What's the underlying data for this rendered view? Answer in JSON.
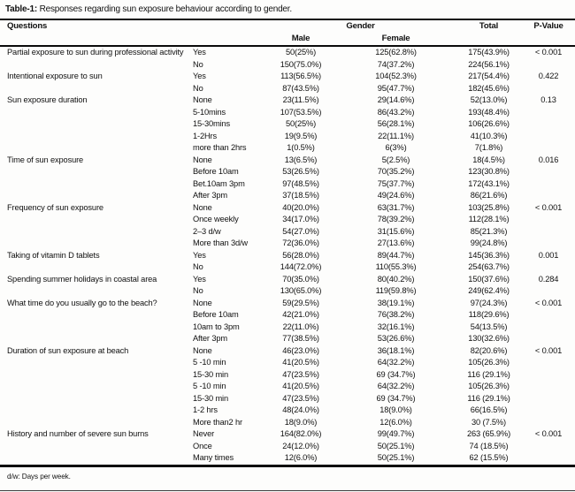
{
  "title": {
    "prefix": "Table-1:",
    "text": " Responses regarding sun exposure behaviour according to gender."
  },
  "columns": {
    "questions": "Questions",
    "gender": "Gender",
    "male": "Male",
    "female": "Female",
    "total": "Total",
    "p_value": "P-Value"
  },
  "footnote": "d/w: Days per week.",
  "table": {
    "rows": [
      {
        "q": "Partial exposure to sun during professional activity",
        "opt": "Yes",
        "male": "50(25%)",
        "female": "125(62.8%)",
        "total": "175(43.9%)",
        "p": "< 0.001"
      },
      {
        "q": "",
        "opt": "No",
        "male": "150(75.0%)",
        "female": "74(37.2%)",
        "total": "224(56.1%)",
        "p": ""
      },
      {
        "q": "Intentional exposure to sun",
        "opt": "Yes",
        "male": "113(56.5%)",
        "female": "104(52.3%)",
        "total": "217(54.4%)",
        "p": "0.422"
      },
      {
        "q": "",
        "opt": "No",
        "male": "87(43.5%)",
        "female": "95(47.7%)",
        "total": "182(45.6%)",
        "p": ""
      },
      {
        "q": "Sun exposure duration",
        "opt": "None",
        "male": "23(11.5%)",
        "female": "29(14.6%)",
        "total": "52(13.0%)",
        "p": "0.13"
      },
      {
        "q": "",
        "opt": "5-10mins",
        "male": "107(53.5%)",
        "female": "86(43.2%)",
        "total": "193(48.4%)",
        "p": ""
      },
      {
        "q": "",
        "opt": "15-30mins",
        "male": "50(25%)",
        "female": "56(28.1%)",
        "total": "106(26.6%)",
        "p": ""
      },
      {
        "q": "",
        "opt": "1-2Hrs",
        "male": "19(9.5%)",
        "female": "22(11.1%)",
        "total": "41(10.3%)",
        "p": ""
      },
      {
        "q": "",
        "opt": "more than 2hrs",
        "male": "1(0.5%)",
        "female": "6(3%)",
        "total": "7(1.8%)",
        "p": ""
      },
      {
        "q": "Time of sun exposure",
        "opt": "None",
        "male": "13(6.5%)",
        "female": "5(2.5%)",
        "total": "18(4.5%)",
        "p": "0.016"
      },
      {
        "q": "",
        "opt": "Before 10am",
        "male": "53(26.5%)",
        "female": "70(35.2%)",
        "total": "123(30.8%)",
        "p": ""
      },
      {
        "q": "",
        "opt": "Bet.10am 3pm",
        "male": "97(48.5%)",
        "female": "75(37.7%)",
        "total": "172(43.1%)",
        "p": ""
      },
      {
        "q": "",
        "opt": "After 3pm",
        "male": "37(18.5%)",
        "female": "49(24.6%)",
        "total": "86(21.6%)",
        "p": ""
      },
      {
        "q": "Frequency of sun exposure",
        "opt": "None",
        "male": "40(20.0%)",
        "female": "63(31.7%)",
        "total": "103(25.8%)",
        "p": "< 0.001"
      },
      {
        "q": "",
        "opt": "Once weekly",
        "male": "34(17.0%)",
        "female": "78(39.2%)",
        "total": "112(28.1%)",
        "p": ""
      },
      {
        "q": "",
        "opt": "2–3 d/w",
        "male": "54(27.0%)",
        "female": "31(15.6%)",
        "total": "85(21.3%)",
        "p": ""
      },
      {
        "q": "",
        "opt": "More than 3d/w",
        "male": "72(36.0%)",
        "female": "27(13.6%)",
        "total": "99(24.8%)",
        "p": ""
      },
      {
        "q": "Taking of vitamin D tablets",
        "opt": "Yes",
        "male": "56(28.0%)",
        "female": "89(44.7%)",
        "total": "145(36.3%)",
        "p": "0.001"
      },
      {
        "q": "",
        "opt": "No",
        "male": "144(72.0%)",
        "female": "110(55.3%)",
        "total": "254(63.7%)",
        "p": ""
      },
      {
        "q": "Spending summer holidays in coastal area",
        "opt": "Yes",
        "male": "70(35.0%)",
        "female": "80(40.2%)",
        "total": "150(37.6%)",
        "p": "0.284"
      },
      {
        "q": "",
        "opt": "No",
        "male": "130(65.0%)",
        "female": "119(59.8%)",
        "total": "249(62.4%)",
        "p": ""
      },
      {
        "q": "What time do you usually go to the beach?",
        "opt": "None",
        "male": "59(29.5%)",
        "female": "38(19.1%)",
        "total": "97(24.3%)",
        "p": "< 0.001"
      },
      {
        "q": "",
        "opt": "Before 10am",
        "male": "42(21.0%)",
        "female": "76(38.2%)",
        "total": "118(29.6%)",
        "p": ""
      },
      {
        "q": "",
        "opt": "10am to 3pm",
        "male": "22(11.0%)",
        "female": "32(16.1%)",
        "total": "54(13.5%)",
        "p": ""
      },
      {
        "q": "",
        "opt": "After 3pm",
        "male": "77(38.5%)",
        "female": "53(26.6%)",
        "total": "130(32.6%)",
        "p": ""
      },
      {
        "q": "Duration of sun exposure at beach",
        "opt": "None",
        "male": "46(23.0%)",
        "female": "36(18.1%)",
        "total": "82(20.6%)",
        "p": "< 0.001"
      },
      {
        "q": "",
        "opt": "5 -10 min",
        "male": "41(20.5%)",
        "female": "64(32.2%)",
        "total": "105(26.3%)",
        "p": ""
      },
      {
        "q": "",
        "opt": "15-30 min",
        "male": "47(23.5%)",
        "female": "69 (34.7%)",
        "total": "116 (29.1%)",
        "p": ""
      },
      {
        "q": "",
        "opt": "5 -10 min",
        "male": "41(20.5%)",
        "female": "64(32.2%)",
        "total": "105(26.3%)",
        "p": ""
      },
      {
        "q": "",
        "opt": "15-30 min",
        "male": "47(23.5%)",
        "female": "69 (34.7%)",
        "total": "116 (29.1%)",
        "p": ""
      },
      {
        "q": "",
        "opt": "1-2 hrs",
        "male": "48(24.0%)",
        "female": "18(9.0%)",
        "total": "66(16.5%)",
        "p": ""
      },
      {
        "q": "",
        "opt": "More than2 hr",
        "male": "18(9.0%)",
        "female": "12(6.0%)",
        "total": "30 (7.5%)",
        "p": ""
      },
      {
        "q": "History and number of severe sun burns",
        "opt": "Never",
        "male": "164(82.0%)",
        "female": "99(49.7%)",
        "total": "263 (65.9%)",
        "p": "< 0.001"
      },
      {
        "q": "",
        "opt": "Once",
        "male": "24(12.0%)",
        "female": "50(25.1%)",
        "total": "74 (18.5%)",
        "p": ""
      },
      {
        "q": "",
        "opt": "Many times",
        "male": "12(6.0%)",
        "female": "50(25.1%)",
        "total": "62 (15.5%)",
        "p": ""
      }
    ]
  }
}
